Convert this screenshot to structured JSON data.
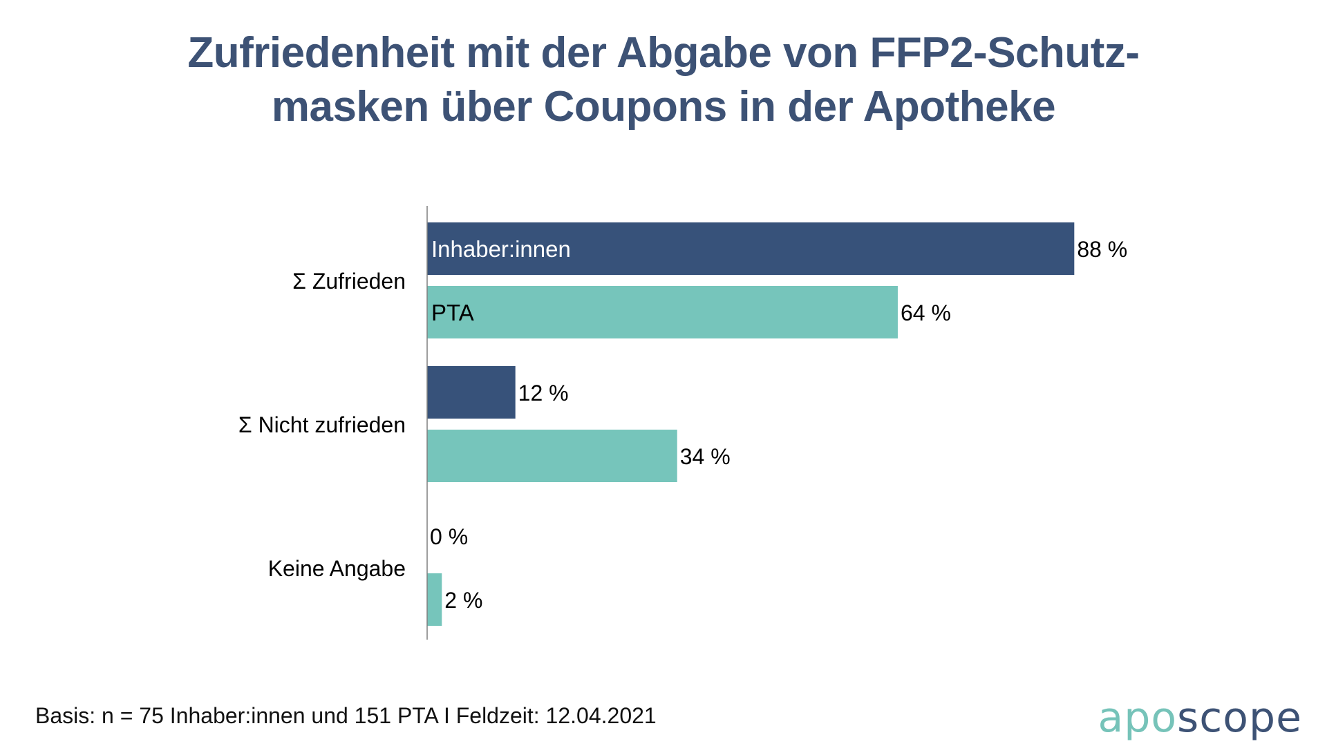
{
  "colors": {
    "series_inhaber": "#37527a",
    "series_pta": "#76c5bb",
    "title": "#3d5275",
    "axis": "#7f7f7f",
    "logo_apo": "#76c3b9",
    "logo_scope": "#3d5275"
  },
  "title_lines": [
    "Zufriedenheit mit der Abgabe von FFP2-Schutz-",
    "masken über Coupons in der Apotheke"
  ],
  "footnote": "Basis: n = 75 Inhaber:innen und 151 PTA I Feldzeit: 12.04.2021",
  "logo": {
    "part1": "apo",
    "part2": "scope"
  },
  "chart_data": {
    "type": "bar",
    "orientation": "horizontal",
    "title": "Zufriedenheit mit der Abgabe von FFP2-Schutzmasken über Coupons in der Apotheke",
    "categories": [
      "Σ Zufrieden",
      "Σ Nicht zufrieden",
      "Keine Angabe"
    ],
    "series": [
      {
        "name": "Inhaber:innen",
        "values": [
          88,
          12,
          0
        ],
        "labels": [
          "88 %",
          "12 %",
          "0 %"
        ]
      },
      {
        "name": "PTA",
        "values": [
          64,
          34,
          2
        ],
        "labels": [
          "64 %",
          "34 %",
          "2 %"
        ]
      }
    ],
    "unit": "%",
    "xlabel": "",
    "ylabel": "",
    "xlim": [
      0,
      100
    ],
    "grid": false,
    "legend": "inside-first-bars"
  }
}
